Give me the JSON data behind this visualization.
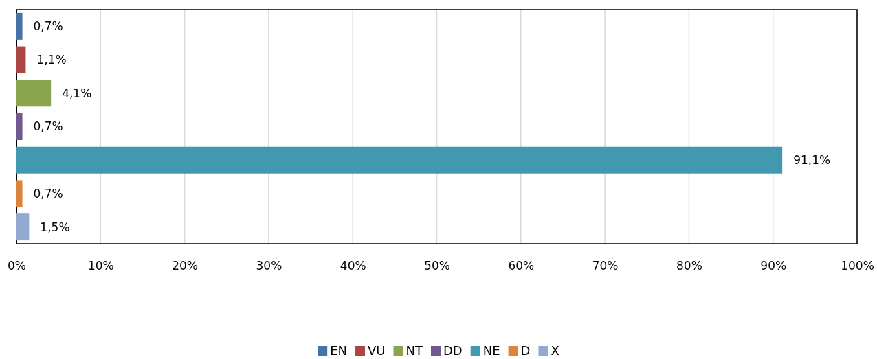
{
  "chart_data": {
    "type": "bar",
    "orientation": "horizontal",
    "categories": [
      null,
      null,
      null,
      null,
      null,
      null,
      null
    ],
    "series": [
      {
        "name": "EN",
        "color": "#4572a7",
        "values": [
          0.7,
          null,
          null,
          null,
          null,
          null,
          null
        ],
        "value_labels": [
          "0,7%",
          null,
          null,
          null,
          null,
          null,
          null
        ]
      },
      {
        "name": "VU",
        "color": "#aa4643",
        "values": [
          null,
          1.1,
          null,
          null,
          null,
          null,
          null
        ],
        "value_labels": [
          null,
          "1,1%",
          null,
          null,
          null,
          null,
          null
        ]
      },
      {
        "name": "NT",
        "color": "#89a54e",
        "values": [
          null,
          null,
          4.1,
          null,
          null,
          null,
          null
        ],
        "value_labels": [
          null,
          null,
          "4,1%",
          null,
          null,
          null,
          null
        ]
      },
      {
        "name": "DD",
        "color": "#71588f",
        "values": [
          null,
          null,
          null,
          0.7,
          null,
          null,
          null
        ],
        "value_labels": [
          null,
          null,
          null,
          "0,7%",
          null,
          null,
          null
        ]
      },
      {
        "name": "NE",
        "color": "#4198af",
        "values": [
          null,
          null,
          null,
          null,
          91.1,
          null,
          null
        ],
        "value_labels": [
          null,
          null,
          null,
          null,
          "91,1%",
          null,
          null
        ]
      },
      {
        "name": "D",
        "color": "#db843d",
        "values": [
          null,
          null,
          null,
          null,
          null,
          0.7,
          null
        ],
        "value_labels": [
          null,
          null,
          null,
          null,
          null,
          "0,7%",
          null
        ]
      },
      {
        "name": "X",
        "color": "#93a9cf",
        "values": [
          null,
          null,
          null,
          null,
          null,
          null,
          1.5
        ],
        "value_labels": [
          null,
          null,
          null,
          null,
          null,
          null,
          "1,5%"
        ]
      }
    ],
    "xlim": [
      0,
      100
    ],
    "xticks": [
      {
        "value": 0,
        "label": "0%"
      },
      {
        "value": 10,
        "label": "10%"
      },
      {
        "value": 20,
        "label": "20%"
      },
      {
        "value": 30,
        "label": "30%"
      },
      {
        "value": 40,
        "label": "40%"
      },
      {
        "value": 50,
        "label": "50%"
      },
      {
        "value": 60,
        "label": "60%"
      },
      {
        "value": 70,
        "label": "70%"
      },
      {
        "value": 80,
        "label": "80%"
      },
      {
        "value": 90,
        "label": "90%"
      },
      {
        "value": 100,
        "label": "100%"
      }
    ],
    "grid": "x",
    "legend": "bottom"
  }
}
